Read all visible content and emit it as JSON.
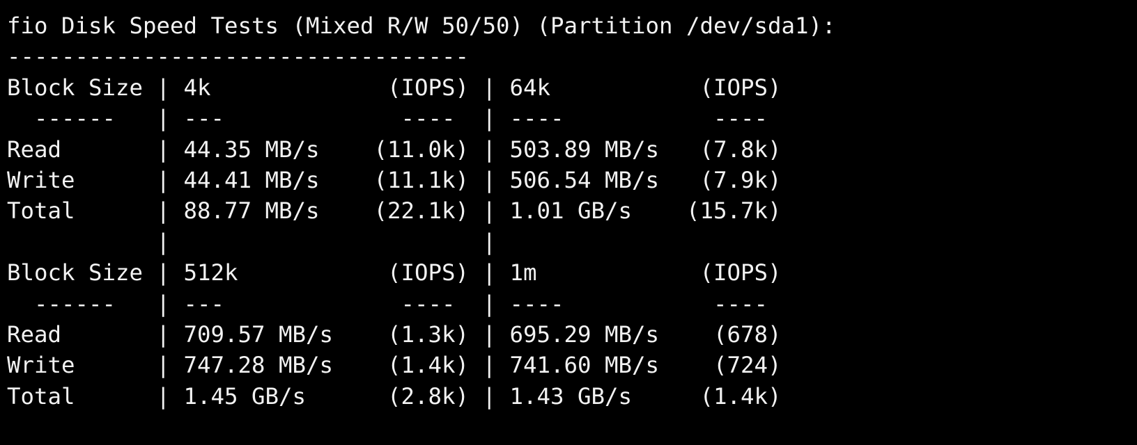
{
  "title": "fio Disk Speed Tests (Mixed R/W 50/50) (Partition /dev/sda1):",
  "separator": "----------------------------------",
  "lines": [
    "Block Size | 4k             (IOPS) | 64k           (IOPS)",
    "  ------   | ---             ----  | ----           ----",
    "Read       | 44.35 MB/s    (11.0k) | 503.89 MB/s   (7.8k)",
    "Write      | 44.41 MB/s    (11.1k) | 506.54 MB/s   (7.9k)",
    "Total      | 88.77 MB/s    (22.1k) | 1.01 GB/s    (15.7k)",
    "           |                       |",
    "Block Size | 512k           (IOPS) | 1m            (IOPS)",
    "  ------   | ---             ----  | ----           ----",
    "Read       | 709.57 MB/s    (1.3k) | 695.29 MB/s    (678)",
    "Write      | 747.28 MB/s    (1.4k) | 741.60 MB/s    (724)",
    "Total      | 1.45 GB/s      (2.8k) | 1.43 GB/s     (1.4k)"
  ]
}
